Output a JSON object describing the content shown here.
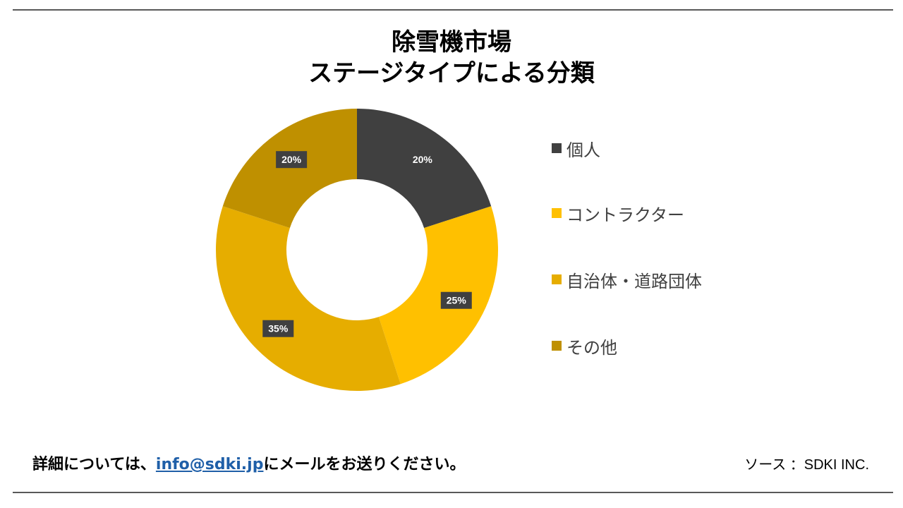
{
  "title_line1": "除雪機市場",
  "title_line2": "ステージタイプによる分類",
  "chart_data": {
    "type": "pie",
    "donut": true,
    "categories": [
      "個人",
      "コントラクター",
      "自治体・道路団体",
      "その他"
    ],
    "values": [
      20,
      25,
      35,
      20
    ],
    "value_labels": [
      "20%",
      "25%",
      "35%",
      "20%"
    ],
    "colors": [
      "#404040",
      "#ffc000",
      "#e6ad00",
      "#bf9000"
    ],
    "legend_position": "right"
  },
  "footer": {
    "contact_prefix": "詳細については、",
    "contact_email": "info@sdki.jp",
    "contact_suffix": "にメールをお送りください。",
    "source": "ソース ：SDKI INC."
  }
}
